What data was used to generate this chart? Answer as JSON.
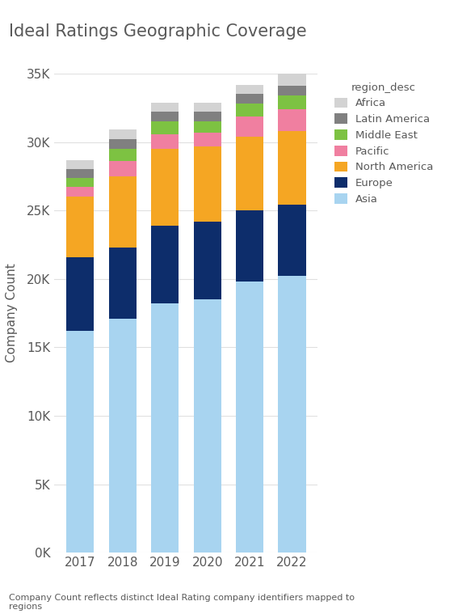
{
  "title": "Ideal Ratings Geographic Coverage",
  "ylabel": "Company Count",
  "years": [
    "2017",
    "2018",
    "2019",
    "2020",
    "2021",
    "2022"
  ],
  "regions": [
    "Asia",
    "Europe",
    "North America",
    "Pacific",
    "Middle East",
    "Latin America",
    "Africa"
  ],
  "colors": {
    "Asia": "#a8d4f0",
    "Europe": "#0d2d6b",
    "North America": "#f5a623",
    "Pacific": "#f07fa0",
    "Middle East": "#7dc242",
    "Latin America": "#808080",
    "Africa": "#d3d3d3"
  },
  "data": {
    "Asia": [
      16200,
      17100,
      18200,
      18500,
      19800,
      20200
    ],
    "Europe": [
      5400,
      5200,
      5700,
      5700,
      5200,
      5200
    ],
    "North America": [
      4400,
      5200,
      5600,
      5500,
      5400,
      5400
    ],
    "Pacific": [
      700,
      1100,
      1100,
      1000,
      1500,
      1600
    ],
    "Middle East": [
      700,
      900,
      900,
      800,
      900,
      1000
    ],
    "Latin America": [
      600,
      700,
      700,
      700,
      700,
      700
    ],
    "Africa": [
      700,
      700,
      700,
      700,
      700,
      900
    ]
  },
  "ylim": [
    0,
    35000
  ],
  "yticks": [
    0,
    5000,
    10000,
    15000,
    20000,
    25000,
    30000,
    35000
  ],
  "ytick_labels": [
    "0K",
    "5K",
    "10K",
    "15K",
    "20K",
    "25K",
    "30K",
    "35K"
  ],
  "footnote": "Company Count reflects distinct Ideal Rating company identifiers mapped to\nregions",
  "background_color": "#ffffff",
  "grid_color": "#e0e0e0",
  "title_color": "#595959",
  "axis_label_color": "#595959",
  "tick_color": "#595959",
  "legend_title": "region_desc"
}
